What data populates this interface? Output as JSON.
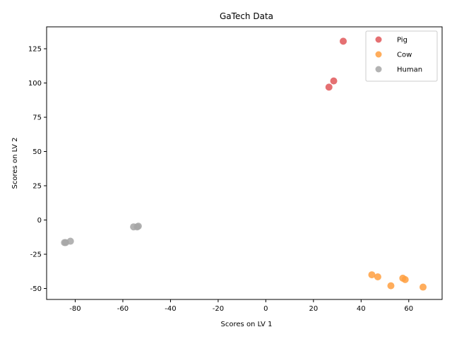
{
  "chart_data": {
    "type": "scatter",
    "title": "GaTech Data",
    "xlabel": "Scores on LV 1",
    "ylabel": "Scores on LV 2",
    "xlim": [
      -92,
      74
    ],
    "ylim": [
      -58,
      141
    ],
    "xticks": [
      -80,
      -60,
      -40,
      -20,
      0,
      20,
      40,
      60
    ],
    "yticks": [
      -50,
      -25,
      0,
      25,
      50,
      75,
      100,
      125
    ],
    "legend_position": "top-right",
    "series": [
      {
        "name": "Pig",
        "color": "#e15759",
        "points": [
          [
            32.5,
            130.5
          ],
          [
            28.5,
            101.5
          ],
          [
            26.5,
            97.0
          ]
        ]
      },
      {
        "name": "Cow",
        "color": "#ff9f40",
        "points": [
          [
            44.5,
            -40.0
          ],
          [
            47.0,
            -41.5
          ],
          [
            57.5,
            -42.5
          ],
          [
            58.5,
            -43.5
          ],
          [
            52.5,
            -48.0
          ],
          [
            66.0,
            -49.0
          ]
        ]
      },
      {
        "name": "Human",
        "color": "#a6a6a6",
        "points": [
          [
            -53.5,
            -4.5
          ],
          [
            -54.0,
            -5.0
          ],
          [
            -55.5,
            -5.0
          ],
          [
            -82.0,
            -15.5
          ],
          [
            -84.0,
            -16.5
          ],
          [
            -84.5,
            -16.5
          ]
        ]
      }
    ]
  }
}
